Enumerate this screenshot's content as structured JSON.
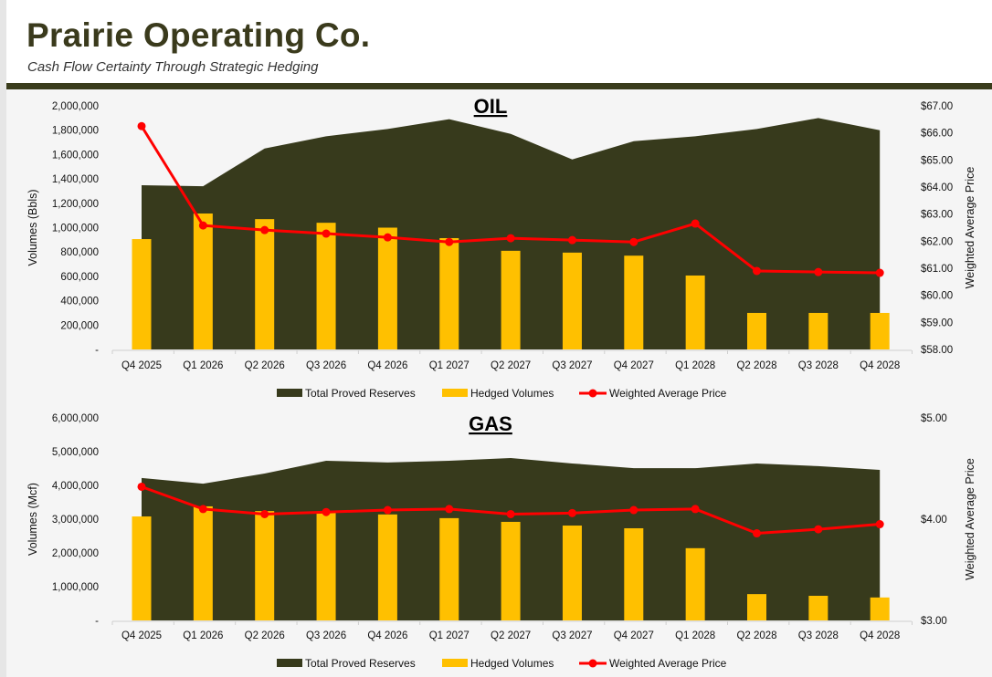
{
  "header": {
    "title": "Prairie Operating Co.",
    "subtitle": "Cash Flow Certainty Through Strategic Hedging"
  },
  "colors": {
    "reserves": "#373a1c",
    "hedged": "#ffc000",
    "price": "#ff0000",
    "brand": "#3a3a1c"
  },
  "chart_data": [
    {
      "type": "bar+area+line",
      "title": "OIL",
      "categories": [
        "Q4 2025",
        "Q1 2026",
        "Q2 2026",
        "Q3 2026",
        "Q4 2026",
        "Q1 2027",
        "Q2 2027",
        "Q3 2027",
        "Q4 2027",
        "Q1 2028",
        "Q2 2028",
        "Q3 2028",
        "Q4 2028"
      ],
      "ylabel": "Volumes (Bbls)",
      "y2label": "Weighted Average Price",
      "ylim": [
        0,
        2000000
      ],
      "y2lim": [
        58,
        67
      ],
      "yticks": [
        "-",
        "200,000",
        "400,000",
        "600,000",
        "800,000",
        "1,000,000",
        "1,200,000",
        "1,400,000",
        "1,600,000",
        "1,800,000",
        "2,000,000"
      ],
      "y2ticks": [
        "$58.00",
        "$59.00",
        "$60.00",
        "$61.00",
        "$62.00",
        "$63.00",
        "$64.00",
        "$65.00",
        "$66.00",
        "$67.00"
      ],
      "legend": "bottom",
      "series": [
        {
          "name": "Total Proved Reserves",
          "type": "area",
          "values": [
            1348000,
            1340000,
            1650000,
            1750000,
            1810000,
            1890000,
            1770000,
            1560000,
            1710000,
            1750000,
            1810000,
            1900000,
            1800000
          ]
        },
        {
          "name": "Hedged Volumes",
          "type": "bar",
          "values": [
            906000,
            1116000,
            1070000,
            1040000,
            1000000,
            914000,
            810000,
            795000,
            770000,
            607000,
            300000,
            300000,
            300000
          ]
        },
        {
          "name": "Weighted Average Price",
          "type": "line",
          "axis": "right",
          "values": [
            66.25,
            62.58,
            62.41,
            62.28,
            62.14,
            61.97,
            62.11,
            62.04,
            61.97,
            62.65,
            60.9,
            60.86,
            60.83
          ]
        }
      ]
    },
    {
      "type": "bar+area+line",
      "title": "GAS",
      "categories": [
        "Q4 2025",
        "Q1 2026",
        "Q2 2026",
        "Q3 2026",
        "Q4 2026",
        "Q1 2027",
        "Q2 2027",
        "Q3 2027",
        "Q4 2027",
        "Q1 2028",
        "Q2 2028",
        "Q3 2028",
        "Q4 2028"
      ],
      "ylabel": "Volumes (Mcf)",
      "y2label": "Weighted Average Price",
      "ylim": [
        0,
        6000000
      ],
      "y2lim": [
        3,
        5
      ],
      "yticks": [
        "-",
        "1,000,000",
        "2,000,000",
        "3,000,000",
        "4,000,000",
        "5,000,000",
        "6,000,000"
      ],
      "y2ticks": [
        "$3.00",
        "$4.00",
        "$5.00"
      ],
      "legend": "bottom",
      "series": [
        {
          "name": "Total Proved Reserves",
          "type": "area",
          "values": [
            4220000,
            4050000,
            4350000,
            4730000,
            4680000,
            4730000,
            4810000,
            4650000,
            4510000,
            4510000,
            4650000,
            4570000,
            4460000
          ]
        },
        {
          "name": "Hedged Volumes",
          "type": "bar",
          "values": [
            3080000,
            3380000,
            3240000,
            3190000,
            3140000,
            3030000,
            2920000,
            2810000,
            2730000,
            2140000,
            780000,
            730000,
            680000
          ]
        },
        {
          "name": "Weighted Average Price",
          "type": "line",
          "axis": "right",
          "values": [
            4.32,
            4.1,
            4.05,
            4.07,
            4.09,
            4.1,
            4.05,
            4.06,
            4.09,
            4.1,
            3.86,
            3.9,
            3.95
          ]
        }
      ]
    }
  ]
}
